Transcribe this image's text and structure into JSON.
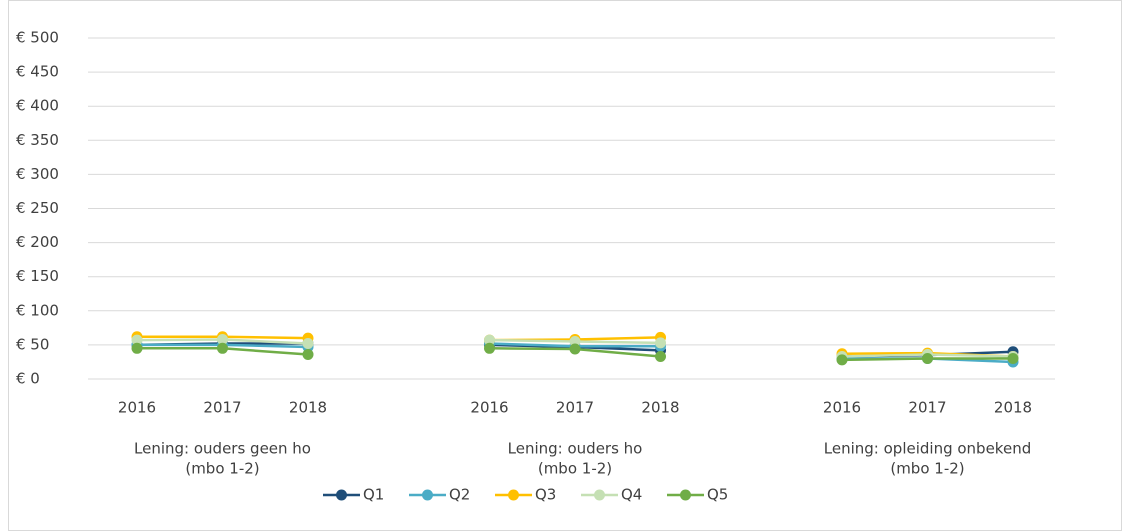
{
  "chart_data": {
    "type": "line",
    "groups": [
      {
        "name": [
          "Lening: ouders geen ho",
          "(mbo 1-2)"
        ],
        "categories": [
          "2016",
          "2017",
          "2018"
        ]
      },
      {
        "name": [
          "Lening: ouders ho",
          "(mbo 1-2)"
        ],
        "categories": [
          "2016",
          "2017",
          "2018"
        ]
      },
      {
        "name": [
          "Lening: opleiding onbekend",
          "(mbo 1-2)"
        ],
        "categories": [
          "2016",
          "2017",
          "2018"
        ]
      }
    ],
    "series": [
      {
        "name": "Q1",
        "color": "#1f4e79",
        "values": [
          [
            50,
            52,
            52
          ],
          [
            50,
            47,
            42
          ],
          [
            33,
            35,
            40
          ]
        ]
      },
      {
        "name": "Q2",
        "color": "#4bacc6",
        "values": [
          [
            50,
            50,
            47
          ],
          [
            52,
            48,
            48
          ],
          [
            30,
            30,
            25
          ]
        ]
      },
      {
        "name": "Q3",
        "color": "#ffc000",
        "values": [
          [
            62,
            62,
            60
          ],
          [
            57,
            58,
            61
          ],
          [
            37,
            38,
            33
          ]
        ]
      },
      {
        "name": "Q4",
        "color": "#c5e0b4",
        "values": [
          [
            57,
            58,
            52
          ],
          [
            57,
            55,
            53
          ],
          [
            33,
            36,
            33
          ]
        ]
      },
      {
        "name": "Q5",
        "color": "#70ad47",
        "values": [
          [
            45,
            45,
            36
          ],
          [
            45,
            44,
            33
          ],
          [
            28,
            30,
            30
          ]
        ]
      }
    ],
    "ylim": [
      0,
      500
    ],
    "yticks": [
      {
        "value": 0,
        "label": "€ 0"
      },
      {
        "value": 50,
        "label": "€ 50"
      },
      {
        "value": 100,
        "label": "€ 100"
      },
      {
        "value": 150,
        "label": "€ 150"
      },
      {
        "value": 200,
        "label": "€ 200"
      },
      {
        "value": 250,
        "label": "€ 250"
      },
      {
        "value": 300,
        "label": "€ 300"
      },
      {
        "value": 350,
        "label": "€ 350"
      },
      {
        "value": 400,
        "label": "€ 400"
      },
      {
        "value": 450,
        "label": "€ 450"
      },
      {
        "value": 500,
        "label": "€ 500"
      }
    ],
    "grid": true,
    "legend": "bottom"
  }
}
